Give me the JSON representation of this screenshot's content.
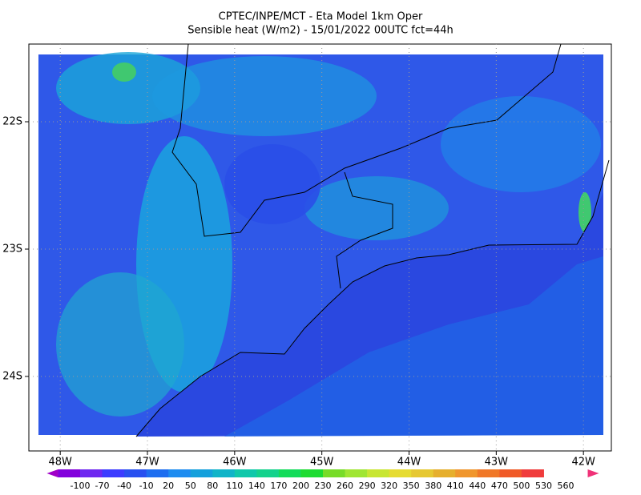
{
  "title": "CPTEC/INPE/MCT -  Eta Model 1km Oper",
  "subtitle": "Sensible heat (W/m2) - 15/01/2022 00UTC fct=44h",
  "lon_range": [
    -48.36,
    -41.68
  ],
  "lat_range": [
    -24.585,
    -21.39
  ],
  "lon_ticks": [
    {
      "value": -48,
      "label": "48W"
    },
    {
      "value": -47,
      "label": "47W"
    },
    {
      "value": -46,
      "label": "46W"
    },
    {
      "value": -45,
      "label": "45W"
    },
    {
      "value": -44,
      "label": "44W"
    },
    {
      "value": -43,
      "label": "43W"
    },
    {
      "value": -42,
      "label": "42W"
    }
  ],
  "lat_ticks": [
    {
      "value": -22,
      "label": "22S"
    },
    {
      "value": -23,
      "label": "23S"
    },
    {
      "value": -24,
      "label": "24S"
    }
  ],
  "colorbar": {
    "labels": [
      -100,
      -70,
      -40,
      -10,
      20,
      50,
      80,
      110,
      140,
      170,
      200,
      230,
      260,
      290,
      320,
      350,
      380,
      410,
      440,
      470,
      500,
      530,
      560
    ],
    "colors": [
      "#a000c8",
      "#8200dc",
      "#6e28f0",
      "#3c3cff",
      "#2850f0",
      "#1e6ef0",
      "#1e8cf0",
      "#14a0dc",
      "#10b4c8",
      "#10c8aa",
      "#14d28c",
      "#14dc5a",
      "#1edc32",
      "#78dc28",
      "#a0e632",
      "#c8e632",
      "#e6dc32",
      "#e6c832",
      "#e6af2d",
      "#f0962d",
      "#f07828",
      "#f05a28",
      "#f03c3c",
      "#f03278"
    ]
  }
}
